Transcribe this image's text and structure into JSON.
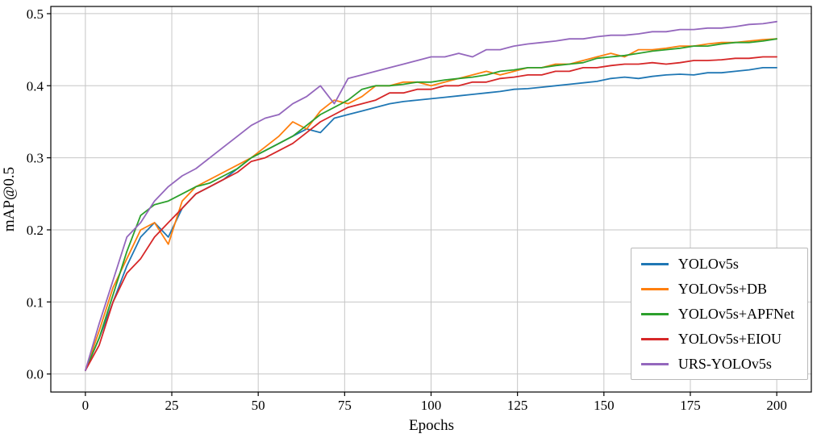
{
  "chart_data": {
    "type": "line",
    "title": "",
    "xlabel": "Epochs",
    "ylabel": "mAP@0.5",
    "xlim": [
      -10,
      210
    ],
    "ylim": [
      -0.025,
      0.51
    ],
    "xticks": [
      0,
      25,
      50,
      75,
      100,
      125,
      150,
      175,
      200
    ],
    "yticks": [
      0.0,
      0.1,
      0.2,
      0.3,
      0.4,
      0.5
    ],
    "grid": true,
    "legend_position": "lower right",
    "x": [
      0,
      4,
      8,
      12,
      16,
      20,
      24,
      28,
      32,
      36,
      40,
      44,
      48,
      52,
      56,
      60,
      64,
      68,
      72,
      76,
      80,
      84,
      88,
      92,
      96,
      100,
      104,
      108,
      112,
      116,
      120,
      124,
      128,
      132,
      136,
      140,
      144,
      148,
      152,
      156,
      160,
      164,
      168,
      172,
      176,
      180,
      184,
      188,
      192,
      196,
      200
    ],
    "series": [
      {
        "name": "YOLOv5s",
        "color": "#1f77b4",
        "values": [
          0.005,
          0.05,
          0.1,
          0.15,
          0.19,
          0.21,
          0.19,
          0.23,
          0.25,
          0.26,
          0.27,
          0.285,
          0.3,
          0.31,
          0.32,
          0.33,
          0.34,
          0.335,
          0.355,
          0.36,
          0.365,
          0.37,
          0.375,
          0.378,
          0.38,
          0.382,
          0.384,
          0.386,
          0.388,
          0.39,
          0.392,
          0.395,
          0.396,
          0.398,
          0.4,
          0.402,
          0.404,
          0.406,
          0.41,
          0.412,
          0.41,
          0.413,
          0.415,
          0.416,
          0.415,
          0.418,
          0.418,
          0.42,
          0.422,
          0.425,
          0.425
        ]
      },
      {
        "name": "YOLOv5s+DB",
        "color": "#ff7f0e",
        "values": [
          0.005,
          0.06,
          0.12,
          0.16,
          0.2,
          0.21,
          0.18,
          0.24,
          0.26,
          0.27,
          0.28,
          0.29,
          0.3,
          0.315,
          0.33,
          0.35,
          0.34,
          0.365,
          0.38,
          0.375,
          0.385,
          0.4,
          0.4,
          0.405,
          0.405,
          0.4,
          0.405,
          0.41,
          0.415,
          0.42,
          0.415,
          0.42,
          0.425,
          0.425,
          0.43,
          0.43,
          0.435,
          0.44,
          0.445,
          0.44,
          0.45,
          0.45,
          0.452,
          0.455,
          0.455,
          0.458,
          0.46,
          0.46,
          0.462,
          0.464,
          0.465
        ]
      },
      {
        "name": "YOLOv5s+APFNet",
        "color": "#2ca02c",
        "values": [
          0.005,
          0.05,
          0.11,
          0.17,
          0.22,
          0.235,
          0.24,
          0.25,
          0.26,
          0.265,
          0.275,
          0.285,
          0.3,
          0.31,
          0.32,
          0.33,
          0.345,
          0.36,
          0.37,
          0.38,
          0.395,
          0.4,
          0.4,
          0.402,
          0.405,
          0.405,
          0.408,
          0.41,
          0.412,
          0.415,
          0.42,
          0.422,
          0.425,
          0.425,
          0.428,
          0.43,
          0.432,
          0.438,
          0.44,
          0.442,
          0.445,
          0.448,
          0.45,
          0.452,
          0.455,
          0.455,
          0.458,
          0.46,
          0.46,
          0.462,
          0.465
        ]
      },
      {
        "name": "YOLOv5s+EIOU",
        "color": "#d62728",
        "values": [
          0.005,
          0.04,
          0.1,
          0.14,
          0.16,
          0.19,
          0.21,
          0.23,
          0.25,
          0.26,
          0.27,
          0.28,
          0.295,
          0.3,
          0.31,
          0.32,
          0.335,
          0.35,
          0.36,
          0.37,
          0.375,
          0.38,
          0.39,
          0.39,
          0.395,
          0.395,
          0.4,
          0.4,
          0.405,
          0.405,
          0.41,
          0.412,
          0.415,
          0.415,
          0.42,
          0.42,
          0.425,
          0.425,
          0.428,
          0.43,
          0.43,
          0.432,
          0.43,
          0.432,
          0.435,
          0.435,
          0.436,
          0.438,
          0.438,
          0.44,
          0.44
        ]
      },
      {
        "name": "URS-YOLOv5s",
        "color": "#9467bd",
        "values": [
          0.005,
          0.07,
          0.13,
          0.19,
          0.21,
          0.24,
          0.26,
          0.275,
          0.285,
          0.3,
          0.315,
          0.33,
          0.345,
          0.355,
          0.36,
          0.375,
          0.385,
          0.4,
          0.375,
          0.41,
          0.415,
          0.42,
          0.425,
          0.43,
          0.435,
          0.44,
          0.44,
          0.445,
          0.44,
          0.45,
          0.45,
          0.455,
          0.458,
          0.46,
          0.462,
          0.465,
          0.465,
          0.468,
          0.47,
          0.47,
          0.472,
          0.475,
          0.475,
          0.478,
          0.478,
          0.48,
          0.48,
          0.482,
          0.485,
          0.486,
          0.489
        ]
      }
    ]
  },
  "style": {
    "grid_color": "#c6c6c6",
    "spine_color": "#000000",
    "line_width": 1.8
  }
}
